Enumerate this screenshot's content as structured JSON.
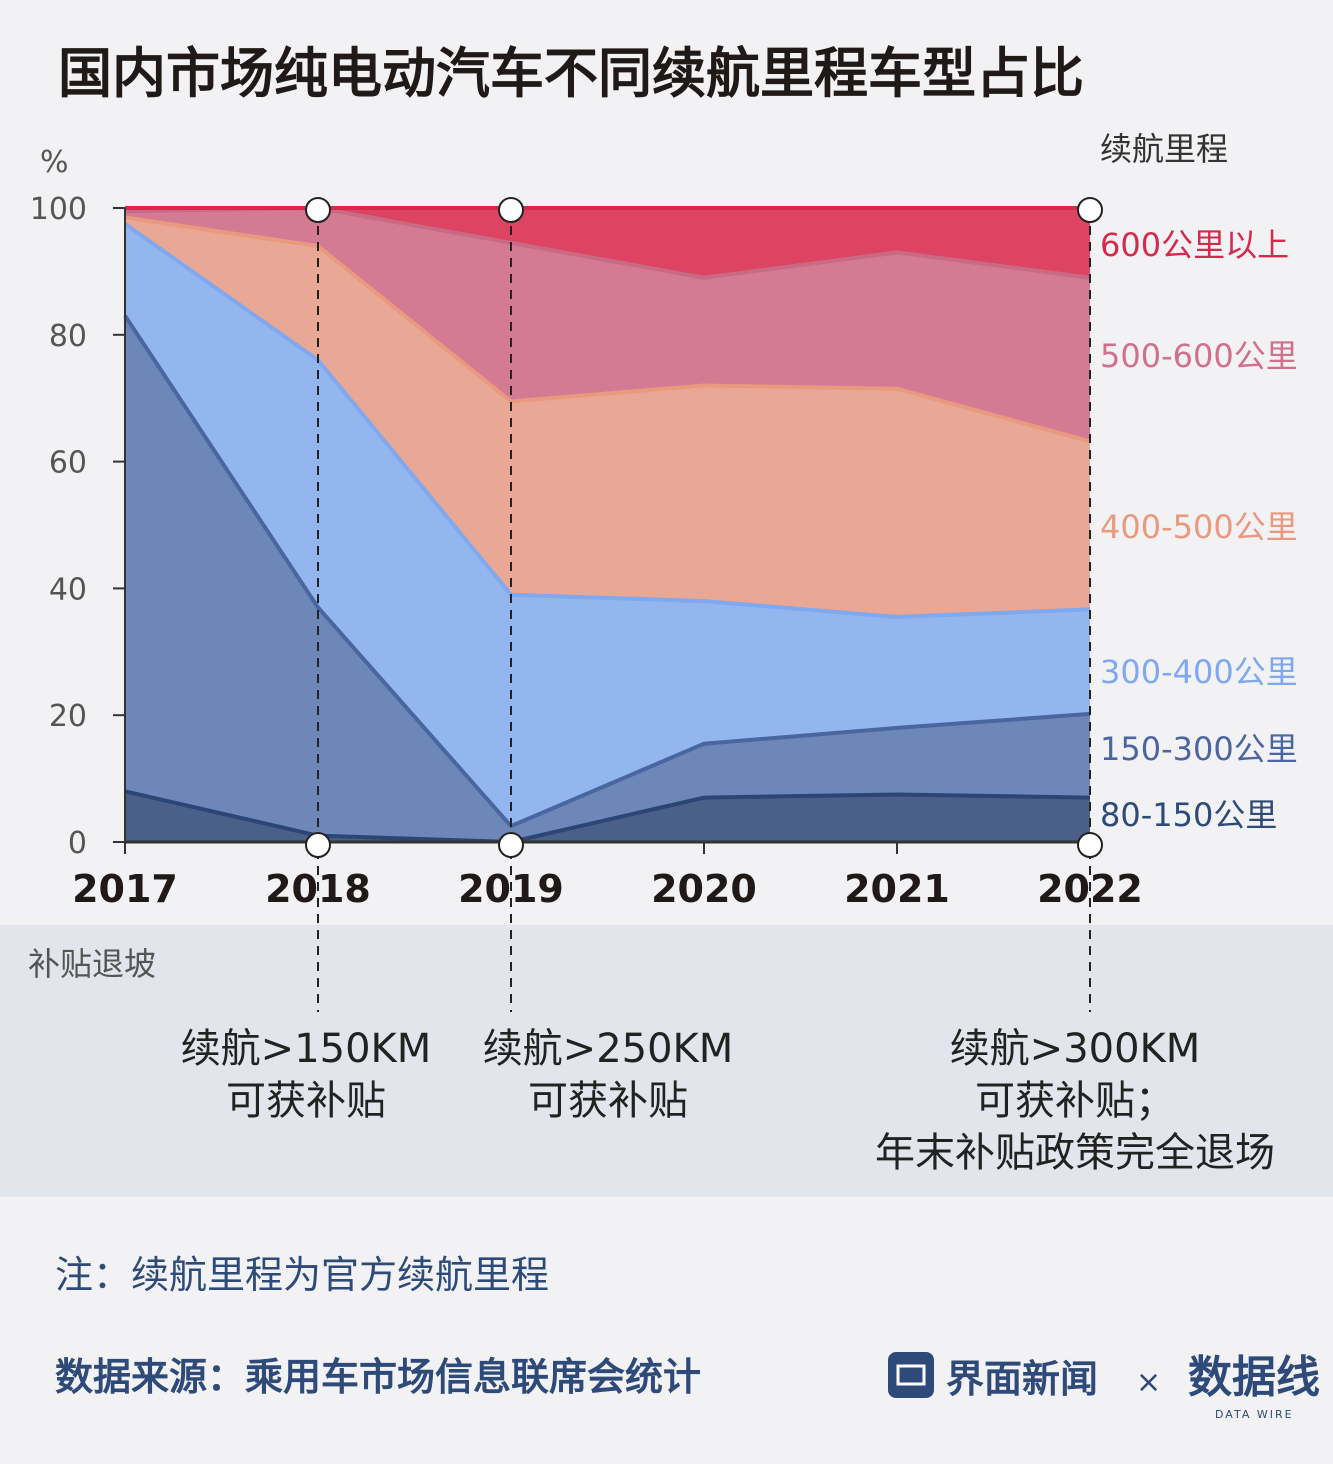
{
  "title": "国内市场纯电动汽车不同续航里程车型占比",
  "y_unit": "%",
  "legend_title": "续航里程",
  "band_label": "补贴退坡",
  "note": "注：续航里程为官方续航里程",
  "source": "数据来源：乘用车市场信息联席会统计",
  "brand": {
    "name": "界面新闻",
    "separator": "×",
    "partner": "数据线",
    "partner_sub": "DATA WIRE",
    "icon": "jiemian-logo-icon"
  },
  "annotations": [
    {
      "year": "2018",
      "lines": [
        "续航>150KM",
        "可获补贴"
      ]
    },
    {
      "year": "2019",
      "lines": [
        "续航>250KM",
        "可获补贴"
      ]
    },
    {
      "year": "2022",
      "lines": [
        "续航>300KM",
        "可获补贴；",
        "年末补贴政策完全退场"
      ]
    }
  ],
  "colors": {
    "background": "#f2f2f4",
    "band": "#e2e5ec"
  },
  "chart_data": {
    "type": "area",
    "stacked": true,
    "x": [
      "2017",
      "2018",
      "2019",
      "2020",
      "2021",
      "2022"
    ],
    "ylim": [
      0,
      100
    ],
    "yticks": [
      0,
      20,
      40,
      60,
      80,
      100
    ],
    "series": [
      {
        "name": "80-150公里",
        "values": [
          8,
          1,
          0,
          7,
          7.5,
          7
        ],
        "color": "#4a6089",
        "line": "#2c4575",
        "label_color": "#2d4a78"
      },
      {
        "name": "150-300公里",
        "values": [
          75,
          36,
          2.5,
          8.5,
          10.5,
          13.2
        ],
        "color": "#6d88b8",
        "line": "#4a66a0",
        "label_color": "#4a66a0"
      },
      {
        "name": "300-400公里",
        "values": [
          14.5,
          39,
          36.5,
          22.5,
          17.5,
          16.5
        ],
        "color": "#93b6ef",
        "line": "#7fa8ee",
        "label_color": "#7fa8ee"
      },
      {
        "name": "400-500公里",
        "values": [
          1,
          18,
          30.5,
          34,
          36,
          26.5
        ],
        "color": "#e8a895",
        "line": "#e9997e",
        "label_color": "#e9997e"
      },
      {
        "name": "500-600公里",
        "values": [
          1,
          6,
          25,
          17,
          21.5,
          25.8
        ],
        "color": "#d47a93",
        "line": "#c96a85",
        "label_color": "#d0708b"
      },
      {
        "name": "600公里以上",
        "values": [
          0.5,
          0,
          5.5,
          11,
          7,
          11
        ],
        "color": "#dc4462",
        "line": "#d42a4c",
        "label_color": "#d42a4c"
      }
    ]
  }
}
